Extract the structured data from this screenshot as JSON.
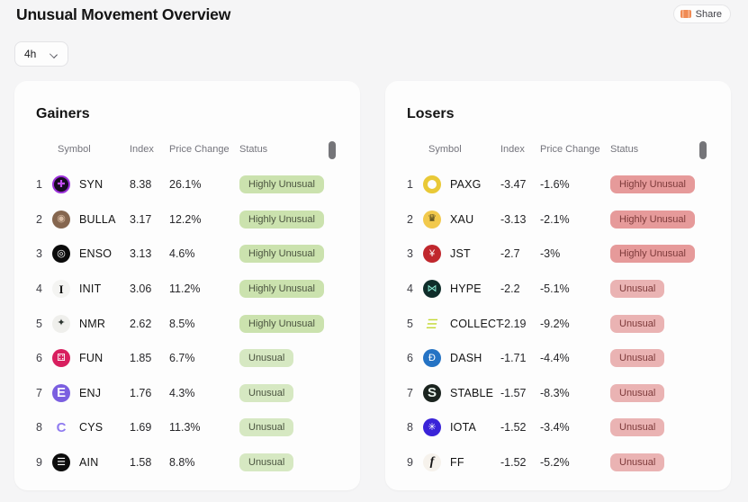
{
  "header": {
    "title": "Unusual Movement Overview",
    "share_label": "Share",
    "timeframe_value": "4h"
  },
  "colors": {
    "accent_orange": "#f08b54",
    "badge_pos_high_bg": "#cbe2ae",
    "badge_pos_mid_bg": "#d6e8c2",
    "badge_pos_text": "#4b5440",
    "badge_neg_high_bg": "#e69a9a",
    "badge_neg_mid_bg": "#eab3b3",
    "badge_neg_text": "#7d3a3a"
  },
  "panels": [
    {
      "id": "gainers",
      "title": "Gainers",
      "tone": "pos",
      "columns": [
        "Symbol",
        "Index",
        "Price Change",
        "Status"
      ],
      "rows": [
        {
          "rank": "1",
          "symbol": "SYN",
          "index": "8.38",
          "change": "26.1%",
          "status": "Highly Unusual",
          "icon": {
            "name": "syn-token-icon",
            "glyph": "✚",
            "bg": "#170b20",
            "fg": "#c24df0",
            "border": "#9b30d9",
            "border_width": 2
          }
        },
        {
          "rank": "2",
          "symbol": "BULLA",
          "index": "3.17",
          "change": "12.2%",
          "status": "Highly Unusual",
          "icon": {
            "name": "bulla-token-icon",
            "glyph": "◉",
            "bg": "#85664f",
            "fg": "#d9bca4"
          }
        },
        {
          "rank": "3",
          "symbol": "ENSO",
          "index": "3.13",
          "change": "4.6%",
          "status": "Highly Unusual",
          "icon": {
            "name": "enso-token-icon",
            "glyph": "◎",
            "bg": "#0b0b0b",
            "fg": "#ffffff"
          }
        },
        {
          "rank": "4",
          "symbol": "INIT",
          "index": "3.06",
          "change": "11.2%",
          "status": "Highly Unusual",
          "icon": {
            "name": "init-token-icon",
            "glyph": "I",
            "bg": "#f4f4f2",
            "fg": "#141414",
            "variant": "serif"
          }
        },
        {
          "rank": "5",
          "symbol": "NMR",
          "index": "2.62",
          "change": "8.5%",
          "status": "Highly Unusual",
          "icon": {
            "name": "nmr-token-icon",
            "glyph": "✦",
            "bg": "#efefec",
            "fg": "#2c3430"
          }
        },
        {
          "rank": "6",
          "symbol": "FUN",
          "index": "1.85",
          "change": "6.7%",
          "status": "Unusual",
          "icon": {
            "name": "fun-token-icon",
            "glyph": "⚃",
            "bg": "#d81f5f",
            "fg": "#ffffff"
          }
        },
        {
          "rank": "7",
          "symbol": "ENJ",
          "index": "1.76",
          "change": "4.3%",
          "status": "Unusual",
          "icon": {
            "name": "enj-token-icon",
            "glyph": "E",
            "bg": "#7b5fe0",
            "fg": "#ffffff",
            "variant": "big"
          }
        },
        {
          "rank": "8",
          "symbol": "CYS",
          "index": "1.69",
          "change": "11.3%",
          "status": "Unusual",
          "icon": {
            "name": "cys-token-icon",
            "glyph": "C",
            "bg": "transparent",
            "fg": "#8f7bf0",
            "variant": "big"
          }
        },
        {
          "rank": "9",
          "symbol": "AIN",
          "index": "1.58",
          "change": "8.8%",
          "status": "Unusual",
          "icon": {
            "name": "ain-token-icon",
            "glyph": "☰",
            "bg": "#0c0c0c",
            "fg": "#ffffff"
          }
        }
      ]
    },
    {
      "id": "losers",
      "title": "Losers",
      "tone": "neg",
      "columns": [
        "Symbol",
        "Index",
        "Price Change",
        "Status"
      ],
      "rows": [
        {
          "rank": "1",
          "symbol": "PAXG",
          "index": "-3.47",
          "change": "-1.6%",
          "status": "Highly Unusual",
          "icon": {
            "name": "paxg-token-icon",
            "glyph": "",
            "bg": "#fdfdfd",
            "fg": "#e9c937",
            "border": "#e9c937",
            "border_width": 5
          }
        },
        {
          "rank": "2",
          "symbol": "XAU",
          "index": "-3.13",
          "change": "-2.1%",
          "status": "Highly Unusual",
          "icon": {
            "name": "xau-token-icon",
            "glyph": "♛",
            "bg": "#f2c94c",
            "fg": "#3a3416"
          }
        },
        {
          "rank": "3",
          "symbol": "JST",
          "index": "-2.7",
          "change": "-3%",
          "status": "Highly Unusual",
          "icon": {
            "name": "jst-token-icon",
            "glyph": "¥",
            "bg": "#c0272d",
            "fg": "#ffffff"
          }
        },
        {
          "rank": "4",
          "symbol": "HYPE",
          "index": "-2.2",
          "change": "-5.1%",
          "status": "Unusual",
          "icon": {
            "name": "hype-token-icon",
            "glyph": "⋈",
            "bg": "#0f2d2a",
            "fg": "#8ef2da"
          }
        },
        {
          "rank": "5",
          "symbol": "COLLECT",
          "index": "-2.19",
          "change": "-9.2%",
          "status": "Unusual",
          "icon": {
            "name": "collect-token-icon",
            "glyph": "☰",
            "bg": "transparent",
            "fg": "#c3d832",
            "variant": "skew"
          }
        },
        {
          "rank": "6",
          "symbol": "DASH",
          "index": "-1.71",
          "change": "-4.4%",
          "status": "Unusual",
          "icon": {
            "name": "dash-token-icon",
            "glyph": "Ð",
            "bg": "#2573c4",
            "fg": "#ffffff"
          }
        },
        {
          "rank": "7",
          "symbol": "STABLE",
          "index": "-1.57",
          "change": "-8.3%",
          "status": "Unusual",
          "icon": {
            "name": "stable-token-icon",
            "glyph": "S",
            "bg": "#1b241f",
            "fg": "#e8f2ec",
            "variant": "big"
          }
        },
        {
          "rank": "8",
          "symbol": "IOTA",
          "index": "-1.52",
          "change": "-3.4%",
          "status": "Unusual",
          "icon": {
            "name": "iota-token-icon",
            "glyph": "✳",
            "bg": "#3a23d8",
            "fg": "#ffffff"
          }
        },
        {
          "rank": "9",
          "symbol": "FF",
          "index": "-1.52",
          "change": "-5.2%",
          "status": "Unusual",
          "icon": {
            "name": "ff-token-icon",
            "glyph": "f",
            "bg": "#f6f2ec",
            "fg": "#141414",
            "variant": "serif italic"
          }
        }
      ]
    }
  ]
}
